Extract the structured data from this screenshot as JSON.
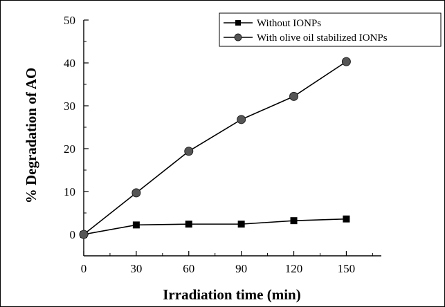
{
  "chart_data": {
    "type": "line",
    "title": "",
    "xlabel": "Irradiation time (min)",
    "ylabel": "% Degradation of AO",
    "x": [
      0,
      30,
      60,
      90,
      120,
      150
    ],
    "xlim": [
      0,
      170
    ],
    "ylim": [
      -5,
      50
    ],
    "xticks": [
      0,
      30,
      60,
      90,
      120,
      150
    ],
    "yticks": [
      0,
      10,
      20,
      30,
      40,
      50
    ],
    "grid": false,
    "legend_position": "top-right",
    "series": [
      {
        "name": "Without IONPs",
        "marker": "square",
        "color": "#000000",
        "values": [
          0,
          2.2,
          2.4,
          2.4,
          3.2,
          3.6
        ]
      },
      {
        "name": "With olive oil stabilized IONPs",
        "marker": "circle",
        "color": "#000000",
        "values": [
          0,
          9.7,
          19.4,
          26.8,
          32.2,
          40.3
        ]
      }
    ]
  }
}
